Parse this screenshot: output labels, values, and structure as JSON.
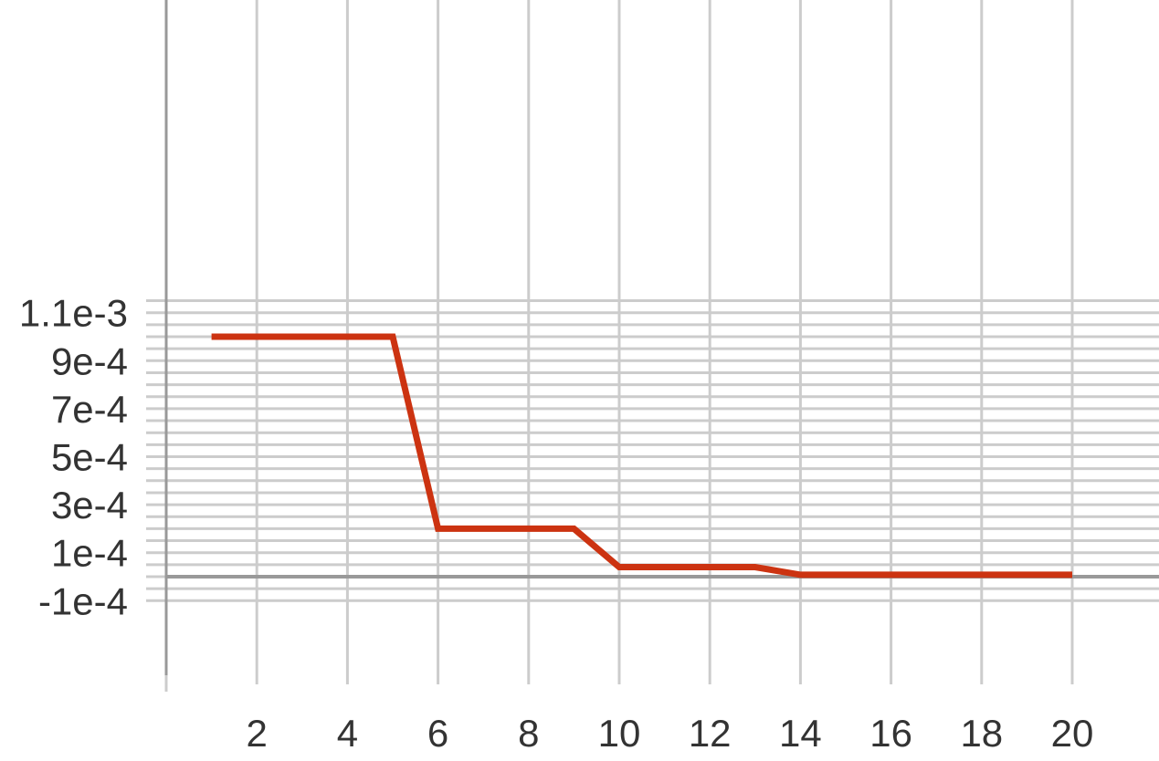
{
  "chart_data": {
    "type": "line",
    "title": "",
    "xlabel": "",
    "ylabel": "",
    "xlim": [
      0,
      22
    ],
    "ylim": [
      -0.00015,
      0.0012
    ],
    "x_ticks": [
      {
        "value": 2,
        "label": "2"
      },
      {
        "value": 4,
        "label": "4"
      },
      {
        "value": 6,
        "label": "6"
      },
      {
        "value": 8,
        "label": "8"
      },
      {
        "value": 10,
        "label": "10"
      },
      {
        "value": 12,
        "label": "12"
      },
      {
        "value": 14,
        "label": "14"
      },
      {
        "value": 16,
        "label": "16"
      },
      {
        "value": 18,
        "label": "18"
      },
      {
        "value": 20,
        "label": "20"
      }
    ],
    "y_ticks": [
      {
        "value": 0.0011,
        "label": "1.1e-3"
      },
      {
        "value": 0.0009,
        "label": "9e-4"
      },
      {
        "value": 0.0007,
        "label": "7e-4"
      },
      {
        "value": 0.0005,
        "label": "5e-4"
      },
      {
        "value": 0.0003,
        "label": "3e-4"
      },
      {
        "value": 0.0001,
        "label": "1e-4"
      },
      {
        "value": -0.0001,
        "label": "-1e-4"
      }
    ],
    "grid": true,
    "legend": "none",
    "colors": {
      "series": "#cc3311",
      "grid": "#cccccc",
      "axis": "#999999",
      "text": "#333333"
    },
    "series": [
      {
        "x": [
          1,
          2,
          3,
          4,
          5,
          6,
          7,
          8,
          9,
          10,
          11,
          12,
          13,
          14,
          15,
          16,
          17,
          18,
          19,
          20
        ],
        "values": [
          0.001,
          0.001,
          0.001,
          0.001,
          0.001,
          0.0002,
          0.0002,
          0.0002,
          0.0002,
          4e-05,
          4e-05,
          4e-05,
          4e-05,
          8e-06,
          8e-06,
          8e-06,
          8e-06,
          8e-06,
          8e-06,
          8e-06
        ]
      }
    ]
  }
}
